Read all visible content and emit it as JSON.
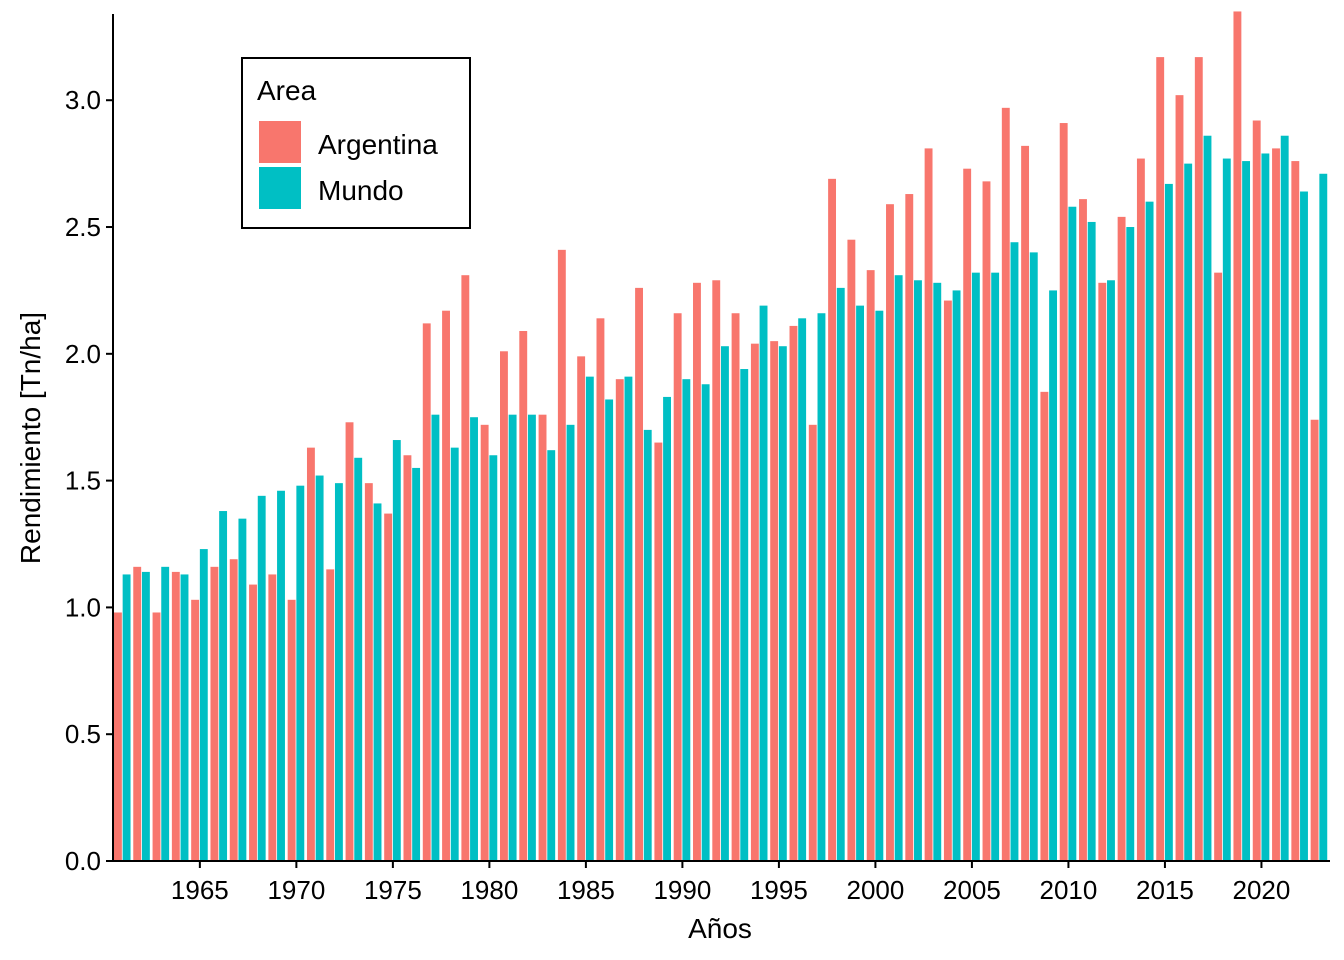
{
  "chart_data": {
    "type": "bar",
    "title": "",
    "xlabel": "Años",
    "ylabel": "Rendimiento [Tn/ha]",
    "ylim": [
      0,
      3.34
    ],
    "yticks": [
      0.0,
      0.5,
      1.0,
      1.5,
      2.0,
      2.5,
      3.0
    ],
    "ytick_labels": [
      "0.0",
      "0.5",
      "1.0",
      "1.5",
      "2.0",
      "2.5",
      "3.0"
    ],
    "xticks": [
      1965,
      1970,
      1975,
      1980,
      1985,
      1990,
      1995,
      2000,
      2005,
      2010,
      2015,
      2020
    ],
    "xtick_labels": [
      "1965",
      "1970",
      "1975",
      "1980",
      "1985",
      "1990",
      "1995",
      "2000",
      "2005",
      "2010",
      "2015",
      "2020"
    ],
    "grid": false,
    "legend": {
      "title": "Area",
      "position": "top-left"
    },
    "categories": [
      1961,
      1962,
      1963,
      1964,
      1965,
      1966,
      1967,
      1968,
      1969,
      1970,
      1971,
      1972,
      1973,
      1974,
      1975,
      1976,
      1977,
      1978,
      1979,
      1980,
      1981,
      1982,
      1983,
      1984,
      1985,
      1986,
      1987,
      1988,
      1989,
      1990,
      1991,
      1992,
      1993,
      1994,
      1995,
      1996,
      1997,
      1998,
      1999,
      2000,
      2001,
      2002,
      2003,
      2004,
      2005,
      2006,
      2007,
      2008,
      2009,
      2010,
      2011,
      2012,
      2013,
      2014,
      2015,
      2016,
      2017,
      2018,
      2019,
      2020,
      2021,
      2022,
      2023
    ],
    "series": [
      {
        "name": "Argentina",
        "color": "#F8766D",
        "values": [
          0.98,
          1.16,
          0.98,
          1.14,
          1.03,
          1.16,
          1.19,
          1.09,
          1.13,
          1.03,
          1.63,
          1.15,
          1.73,
          1.49,
          1.37,
          1.6,
          2.12,
          2.17,
          2.31,
          1.72,
          2.01,
          2.09,
          1.76,
          2.41,
          1.99,
          2.14,
          1.9,
          2.26,
          1.65,
          2.16,
          2.28,
          2.29,
          2.16,
          2.04,
          2.05,
          2.11,
          1.72,
          2.69,
          2.45,
          2.33,
          2.59,
          2.63,
          2.81,
          2.21,
          2.73,
          2.68,
          2.97,
          2.82,
          1.85,
          2.91,
          2.61,
          2.28,
          2.54,
          2.77,
          3.17,
          3.02,
          3.17,
          2.32,
          3.35,
          2.92,
          2.81,
          2.76,
          1.74
        ]
      },
      {
        "name": "Mundo",
        "color": "#00BFC4",
        "values": [
          1.13,
          1.14,
          1.16,
          1.13,
          1.23,
          1.38,
          1.35,
          1.44,
          1.46,
          1.48,
          1.52,
          1.49,
          1.59,
          1.41,
          1.66,
          1.55,
          1.76,
          1.63,
          1.75,
          1.6,
          1.76,
          1.76,
          1.62,
          1.72,
          1.91,
          1.82,
          1.91,
          1.7,
          1.83,
          1.9,
          1.88,
          2.03,
          1.94,
          2.19,
          2.03,
          2.14,
          2.16,
          2.26,
          2.19,
          2.17,
          2.31,
          2.29,
          2.28,
          2.25,
          2.32,
          2.32,
          2.44,
          2.4,
          2.25,
          2.58,
          2.52,
          2.29,
          2.5,
          2.6,
          2.67,
          2.75,
          2.86,
          2.77,
          2.76,
          2.79,
          2.86,
          2.64,
          2.71
        ]
      }
    ]
  }
}
